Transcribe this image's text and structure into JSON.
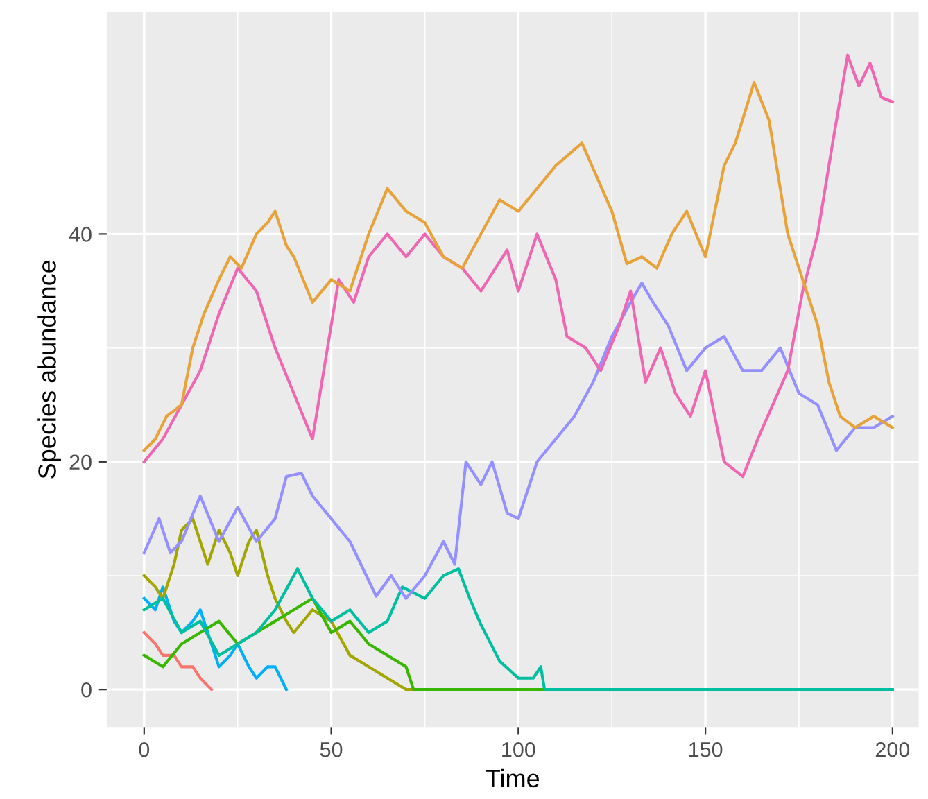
{
  "chart_data": {
    "type": "line",
    "xlabel": "Time",
    "ylabel": "Species abundance",
    "xlim": [
      -10,
      207
    ],
    "ylim": [
      -3.3,
      59.5
    ],
    "xticks": [
      0,
      50,
      100,
      150,
      200
    ],
    "yticks": [
      0,
      20,
      40
    ],
    "grid": true,
    "legend": false,
    "marker": "none",
    "line_style": "solid",
    "series": [
      {
        "color": "#f8766d",
        "x": [
          0,
          3,
          5,
          8,
          10,
          13,
          15,
          18
        ],
        "values": [
          5,
          4,
          3,
          3,
          2,
          2,
          1,
          0
        ]
      },
      {
        "color": "#00b0f6",
        "x": [
          0,
          3,
          5,
          8,
          10,
          13,
          15,
          18,
          20,
          23,
          25,
          28,
          30,
          33,
          35,
          38
        ],
        "values": [
          8,
          7,
          9,
          6,
          5,
          6,
          7,
          4,
          2,
          3,
          4,
          2,
          1,
          2,
          2,
          0
        ]
      },
      {
        "color": "#a3a500",
        "x": [
          0,
          3,
          5,
          8,
          10,
          13,
          17,
          20,
          23,
          25,
          28,
          30,
          33,
          35,
          38,
          40,
          45,
          50,
          55,
          60,
          65,
          70,
          200
        ],
        "values": [
          10,
          9,
          8,
          11,
          14,
          15,
          11,
          14,
          12,
          10,
          13,
          14,
          10,
          8,
          6,
          5,
          7,
          6,
          3,
          2,
          1,
          0,
          0
        ]
      },
      {
        "color": "#39b600",
        "x": [
          0,
          5,
          10,
          15,
          20,
          25,
          30,
          35,
          40,
          45,
          50,
          55,
          60,
          65,
          70,
          72,
          200
        ],
        "values": [
          3,
          2,
          4,
          5,
          6,
          4,
          5,
          6,
          7,
          8,
          5,
          6,
          4,
          3,
          2,
          0,
          0
        ]
      },
      {
        "color": "#00bfa0",
        "x": [
          0,
          5,
          10,
          15,
          20,
          25,
          30,
          35,
          41,
          45,
          50,
          55,
          60,
          65,
          69,
          75,
          80,
          84,
          87,
          90,
          95,
          100,
          104,
          106,
          107,
          200
        ],
        "values": [
          7,
          8,
          5,
          6,
          3,
          4,
          5,
          7,
          10.6,
          8,
          6,
          7,
          5,
          6,
          9,
          8,
          10,
          10.6,
          8,
          5.7,
          2.5,
          1,
          1,
          2,
          0,
          0
        ]
      },
      {
        "color": "#9590ff",
        "x": [
          0,
          4,
          7,
          10,
          15,
          20,
          25,
          30,
          35,
          38,
          42,
          45,
          50,
          55,
          62,
          66,
          70,
          75,
          80,
          83,
          86,
          90,
          93,
          97,
          100,
          105,
          110,
          115,
          120,
          125,
          130,
          133,
          136,
          140,
          145,
          150,
          155,
          160,
          165,
          170,
          175,
          180,
          185,
          190,
          195,
          200
        ],
        "values": [
          12,
          15,
          12,
          13,
          17,
          13,
          16,
          13,
          15,
          18.7,
          19,
          17,
          15,
          13,
          8.2,
          10,
          8,
          10,
          13,
          11,
          20,
          18,
          20,
          15.5,
          15,
          20,
          22,
          24,
          27,
          31,
          34,
          35.7,
          34,
          32,
          28,
          30,
          31,
          28,
          28,
          30,
          26,
          25,
          21,
          23,
          23,
          24
        ]
      },
      {
        "color": "#ef67b3",
        "x": [
          0,
          5,
          10,
          15,
          20,
          25,
          30,
          35,
          40,
          45,
          48,
          52,
          56,
          60,
          65,
          70,
          75,
          80,
          85,
          90,
          97,
          100,
          105,
          110,
          113,
          118,
          122,
          127,
          130,
          134,
          138,
          142,
          146,
          150,
          155,
          160,
          164,
          168,
          172,
          176,
          180,
          184,
          188,
          191,
          194,
          197,
          200
        ],
        "values": [
          20,
          22,
          25,
          28,
          33,
          37,
          35,
          30,
          26,
          22,
          28,
          36,
          34,
          38,
          40,
          38,
          40,
          38,
          37,
          35,
          38.6,
          35,
          40,
          36,
          31,
          30,
          28,
          32,
          35,
          27,
          30,
          26,
          24,
          28,
          20,
          18.7,
          22,
          25,
          28,
          35,
          40,
          48,
          55.7,
          53,
          55,
          52,
          51.6
        ]
      },
      {
        "color": "#e7a33a",
        "x": [
          0,
          3,
          6,
          10,
          13,
          16,
          20,
          23,
          26,
          30,
          33,
          35,
          38,
          40,
          45,
          50,
          55,
          60,
          65,
          70,
          75,
          80,
          85,
          90,
          95,
          100,
          105,
          110,
          117,
          121,
          125,
          129,
          133,
          137,
          141,
          145,
          150,
          155,
          158,
          163,
          167,
          172,
          176,
          180,
          183,
          186,
          190,
          195,
          200
        ],
        "values": [
          21,
          22,
          24,
          25,
          30,
          33,
          36,
          38,
          37,
          40,
          41,
          42,
          39,
          38,
          34,
          36,
          35,
          40,
          44,
          42,
          41,
          38,
          37,
          40,
          43,
          42,
          44,
          46,
          48,
          45,
          42,
          37.4,
          38,
          37,
          40,
          42,
          38,
          46,
          48,
          53.3,
          50,
          40,
          36,
          32,
          27,
          24,
          23,
          24,
          23
        ]
      }
    ]
  }
}
